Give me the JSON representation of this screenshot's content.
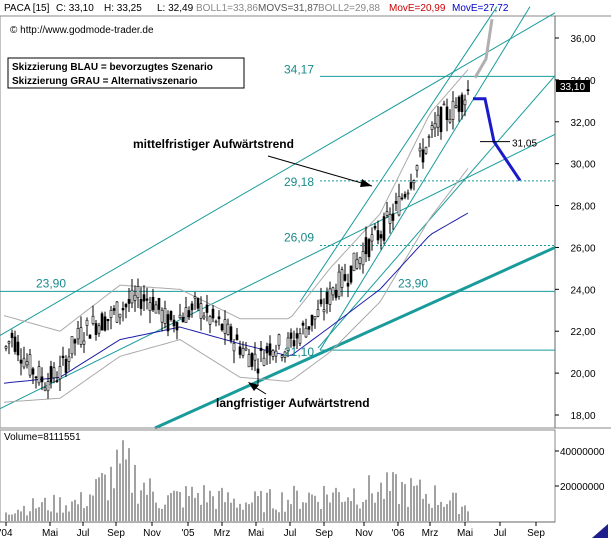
{
  "header": {
    "symbol": "PACA [15]",
    "close": "C: 33,10",
    "high": "H: 33,25",
    "low": "L: 32,49",
    "boll1": "BOLL1=33,86",
    "movs": "MOVS=31,87",
    "boll2": "BOLL2=29,88",
    "move1": "MovE=20,99",
    "move2": "MovE=27,72"
  },
  "copyright": "© http://www.godmode-trader.de",
  "legend_box": {
    "line1": "Skizzierung BLAU = bevorzugtes Szenario",
    "line2": "Skizzierung GRAU = Alternativszenario"
  },
  "volume_label": "Volume=8111551",
  "last_price_tag": "33,10",
  "colors": {
    "candle": "#000000",
    "bollinger": "#aaaaaa",
    "ma_blue": "#1e1eaa",
    "trend": "#1a9b9b",
    "scenario_blue": "#1a1acc",
    "scenario_grey": "#b0b0b0",
    "header_red": "#cc0000",
    "header_blue": "#0000cc"
  },
  "chart_data": {
    "type": "candlestick",
    "y_axis_labels": [
      "36,00",
      "34,00",
      "32,00",
      "30,00",
      "28,00",
      "26,00",
      "24,00",
      "22,00",
      "20,00",
      "18,00"
    ],
    "ylim": [
      17.5,
      37.5
    ],
    "volume_axis_labels": [
      "40000000",
      "20000000"
    ],
    "x_axis_labels": [
      "'04",
      "Mai",
      "Jul",
      "Sep",
      "Nov",
      "'05",
      "Mrz",
      "Mai",
      "Jul",
      "Sep",
      "Nov",
      "'06",
      "Mrz",
      "Mai",
      "Jul",
      "Sep"
    ],
    "levels": [
      {
        "label": "34,17",
        "value": 34.17
      },
      {
        "label": "29,18",
        "value": 29.18
      },
      {
        "label": "26,09",
        "value": 26.09
      },
      {
        "label": "23,90",
        "value": 23.9
      },
      {
        "label": "21,10",
        "value": 21.1
      }
    ],
    "level_23_90_left": "23,90",
    "target_label": "31,05",
    "annotations": {
      "medium_trend": "mittelfristiger Aufwärtstrend",
      "long_trend": "langfristiger Aufwärtstrend"
    },
    "price_anchors": [
      [
        0,
        20.6
      ],
      [
        12,
        21.8
      ],
      [
        28,
        20.4
      ],
      [
        44,
        19.6
      ],
      [
        60,
        20.0
      ],
      [
        76,
        21.6
      ],
      [
        92,
        22.3
      ],
      [
        108,
        22.6
      ],
      [
        124,
        23.2
      ],
      [
        140,
        23.6
      ],
      [
        152,
        23.5
      ],
      [
        168,
        22.4
      ],
      [
        184,
        22.8
      ],
      [
        198,
        23.2
      ],
      [
        210,
        22.6
      ],
      [
        222,
        22.2
      ],
      [
        234,
        21.6
      ],
      [
        246,
        21.0
      ],
      [
        258,
        20.6
      ],
      [
        272,
        21.4
      ],
      [
        286,
        21.2
      ],
      [
        298,
        21.8
      ],
      [
        310,
        22.4
      ],
      [
        322,
        23.0
      ],
      [
        334,
        24.0
      ],
      [
        346,
        24.6
      ],
      [
        358,
        25.4
      ],
      [
        370,
        26.2
      ],
      [
        382,
        26.8
      ],
      [
        394,
        27.6
      ],
      [
        406,
        28.8
      ],
      [
        418,
        30.0
      ],
      [
        430,
        31.2
      ],
      [
        442,
        32.2
      ],
      [
        454,
        32.6
      ],
      [
        464,
        33.2
      ],
      [
        470,
        33.6
      ]
    ],
    "bollinger_upper_anchors": [
      [
        0,
        22.8
      ],
      [
        60,
        22.0
      ],
      [
        120,
        24.2
      ],
      [
        180,
        24.0
      ],
      [
        240,
        22.6
      ],
      [
        290,
        22.6
      ],
      [
        330,
        25.0
      ],
      [
        380,
        27.6
      ],
      [
        430,
        32.4
      ],
      [
        470,
        34.6
      ]
    ],
    "bollinger_lower_anchors": [
      [
        0,
        18.6
      ],
      [
        60,
        18.8
      ],
      [
        120,
        20.8
      ],
      [
        180,
        21.6
      ],
      [
        240,
        19.8
      ],
      [
        290,
        19.6
      ],
      [
        330,
        21.0
      ],
      [
        380,
        23.4
      ],
      [
        430,
        27.4
      ],
      [
        470,
        29.9
      ]
    ],
    "ma_anchors": [
      [
        0,
        19.5
      ],
      [
        60,
        19.8
      ],
      [
        120,
        21.6
      ],
      [
        180,
        22.2
      ],
      [
        240,
        21.4
      ],
      [
        290,
        20.8
      ],
      [
        330,
        22.2
      ],
      [
        380,
        24.0
      ],
      [
        430,
        26.6
      ],
      [
        470,
        27.7
      ]
    ],
    "volume_anchors": [
      [
        0,
        8
      ],
      [
        40,
        12
      ],
      [
        80,
        14
      ],
      [
        124,
        40
      ],
      [
        160,
        16
      ],
      [
        200,
        20
      ],
      [
        240,
        14
      ],
      [
        280,
        16
      ],
      [
        320,
        20
      ],
      [
        360,
        22
      ],
      [
        400,
        24
      ],
      [
        440,
        18
      ],
      [
        470,
        10
      ]
    ],
    "blue_scenario": [
      [
        473,
        33.1
      ],
      [
        485,
        33.1
      ],
      [
        494,
        31.05
      ],
      [
        520,
        29.2
      ]
    ],
    "grey_scenario": [
      [
        475,
        34.1
      ],
      [
        486,
        35.0
      ],
      [
        492,
        36.9
      ]
    ]
  }
}
